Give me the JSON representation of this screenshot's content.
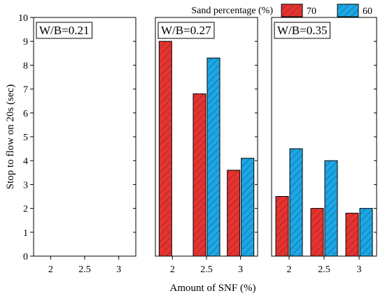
{
  "chart_data": {
    "type": "bar",
    "ylabel": "Stop to flow on 20s (sec)",
    "xlabel": "Amount of SNF (%)",
    "ylim": [
      0,
      10
    ],
    "yticks": [
      "0",
      "1",
      "2",
      "3",
      "4",
      "5",
      "6",
      "7",
      "8",
      "9",
      "10"
    ],
    "legend": {
      "title": "Sand percentage (%)",
      "placement": "top-right",
      "entries": [
        {
          "name": "70",
          "color": "#e8322f"
        },
        {
          "name": "60",
          "color": "#1aa7e8"
        }
      ]
    },
    "categories": [
      "2",
      "2.5",
      "3"
    ],
    "panels": [
      {
        "label": "W/B=0.21",
        "series": [
          {
            "name": "70",
            "values": [
              null,
              null,
              null
            ]
          },
          {
            "name": "60",
            "values": [
              null,
              null,
              null
            ]
          }
        ]
      },
      {
        "label": "W/B=0.27",
        "series": [
          {
            "name": "70",
            "values": [
              9.0,
              6.8,
              3.6
            ]
          },
          {
            "name": "60",
            "values": [
              null,
              8.3,
              4.1
            ]
          }
        ]
      },
      {
        "label": "W/B=0.35",
        "series": [
          {
            "name": "70",
            "values": [
              2.5,
              2.0,
              1.8
            ]
          },
          {
            "name": "60",
            "values": [
              4.5,
              4.0,
              2.0
            ]
          }
        ]
      }
    ]
  }
}
